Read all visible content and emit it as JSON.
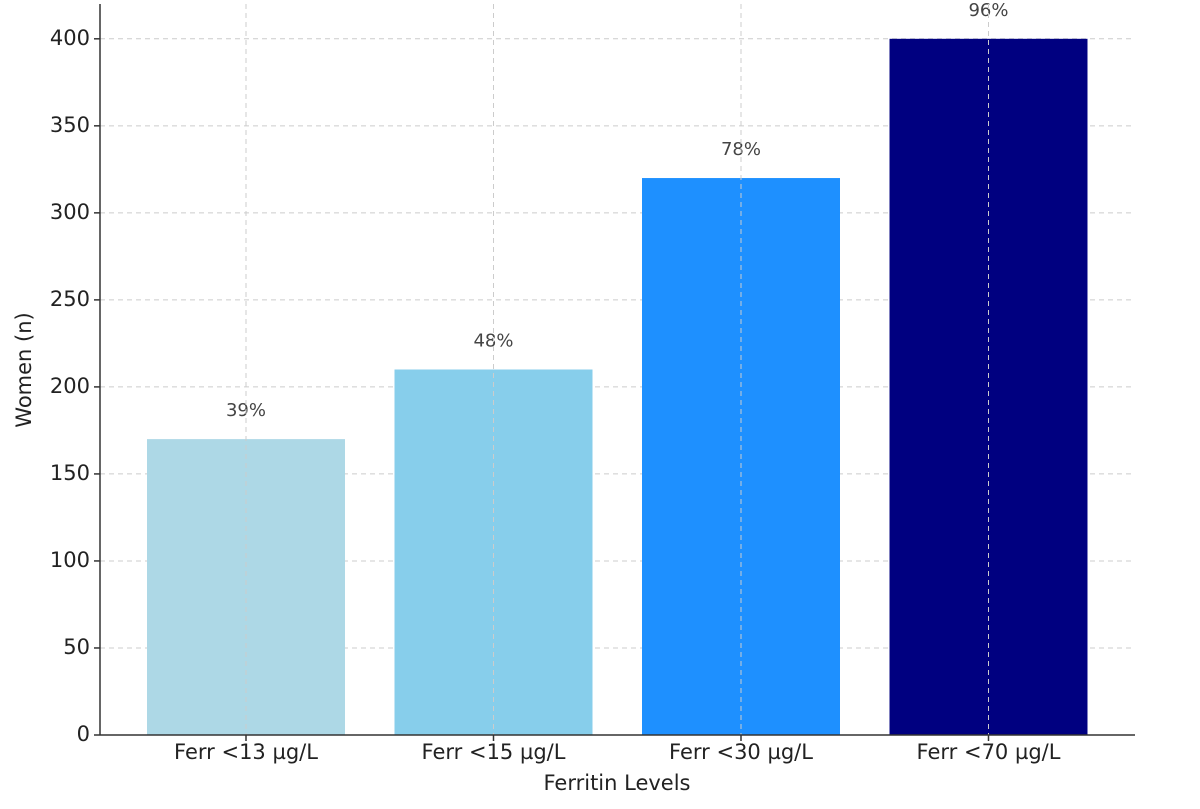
{
  "chart_data": {
    "type": "bar",
    "x_label": "Ferritin Levels",
    "y_label": "Women (n)",
    "categories": [
      "Ferr <13 µg/L",
      "Ferr <15 µg/L",
      "Ferr <30 µg/L",
      "Ferr <70 µg/L"
    ],
    "values": [
      170,
      210,
      320,
      400
    ],
    "value_labels": [
      "39%",
      "48%",
      "78%",
      "96%"
    ],
    "colors": [
      "#add8e6",
      "#87ceeb",
      "#1e90ff",
      "#000080"
    ],
    "ylim": [
      0,
      420
    ],
    "yticks": [
      0,
      50,
      100,
      150,
      200,
      250,
      300,
      350,
      400
    ],
    "grid": true
  }
}
